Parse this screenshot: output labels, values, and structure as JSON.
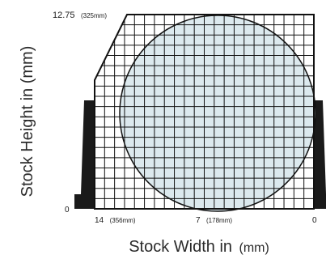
{
  "diagram": {
    "top_label": {
      "main": "12.75",
      "unit": "(325mm)"
    },
    "origin_label": "0",
    "bottom_labels": {
      "left": {
        "main": "14",
        "unit": "(356mm)"
      },
      "middle": {
        "main": "7",
        "unit": "(178mm)"
      },
      "right": {
        "main": "0"
      }
    },
    "y_axis_title": "Stock Height in (mm)",
    "x_axis_title": {
      "main": "Stock Width in",
      "unit": "(mm)"
    },
    "colors": {
      "grid": "#111111",
      "circle_fill": "#dce9ee",
      "vise_jaw": "#1a1a1a",
      "text": "#1a1a1a"
    }
  }
}
